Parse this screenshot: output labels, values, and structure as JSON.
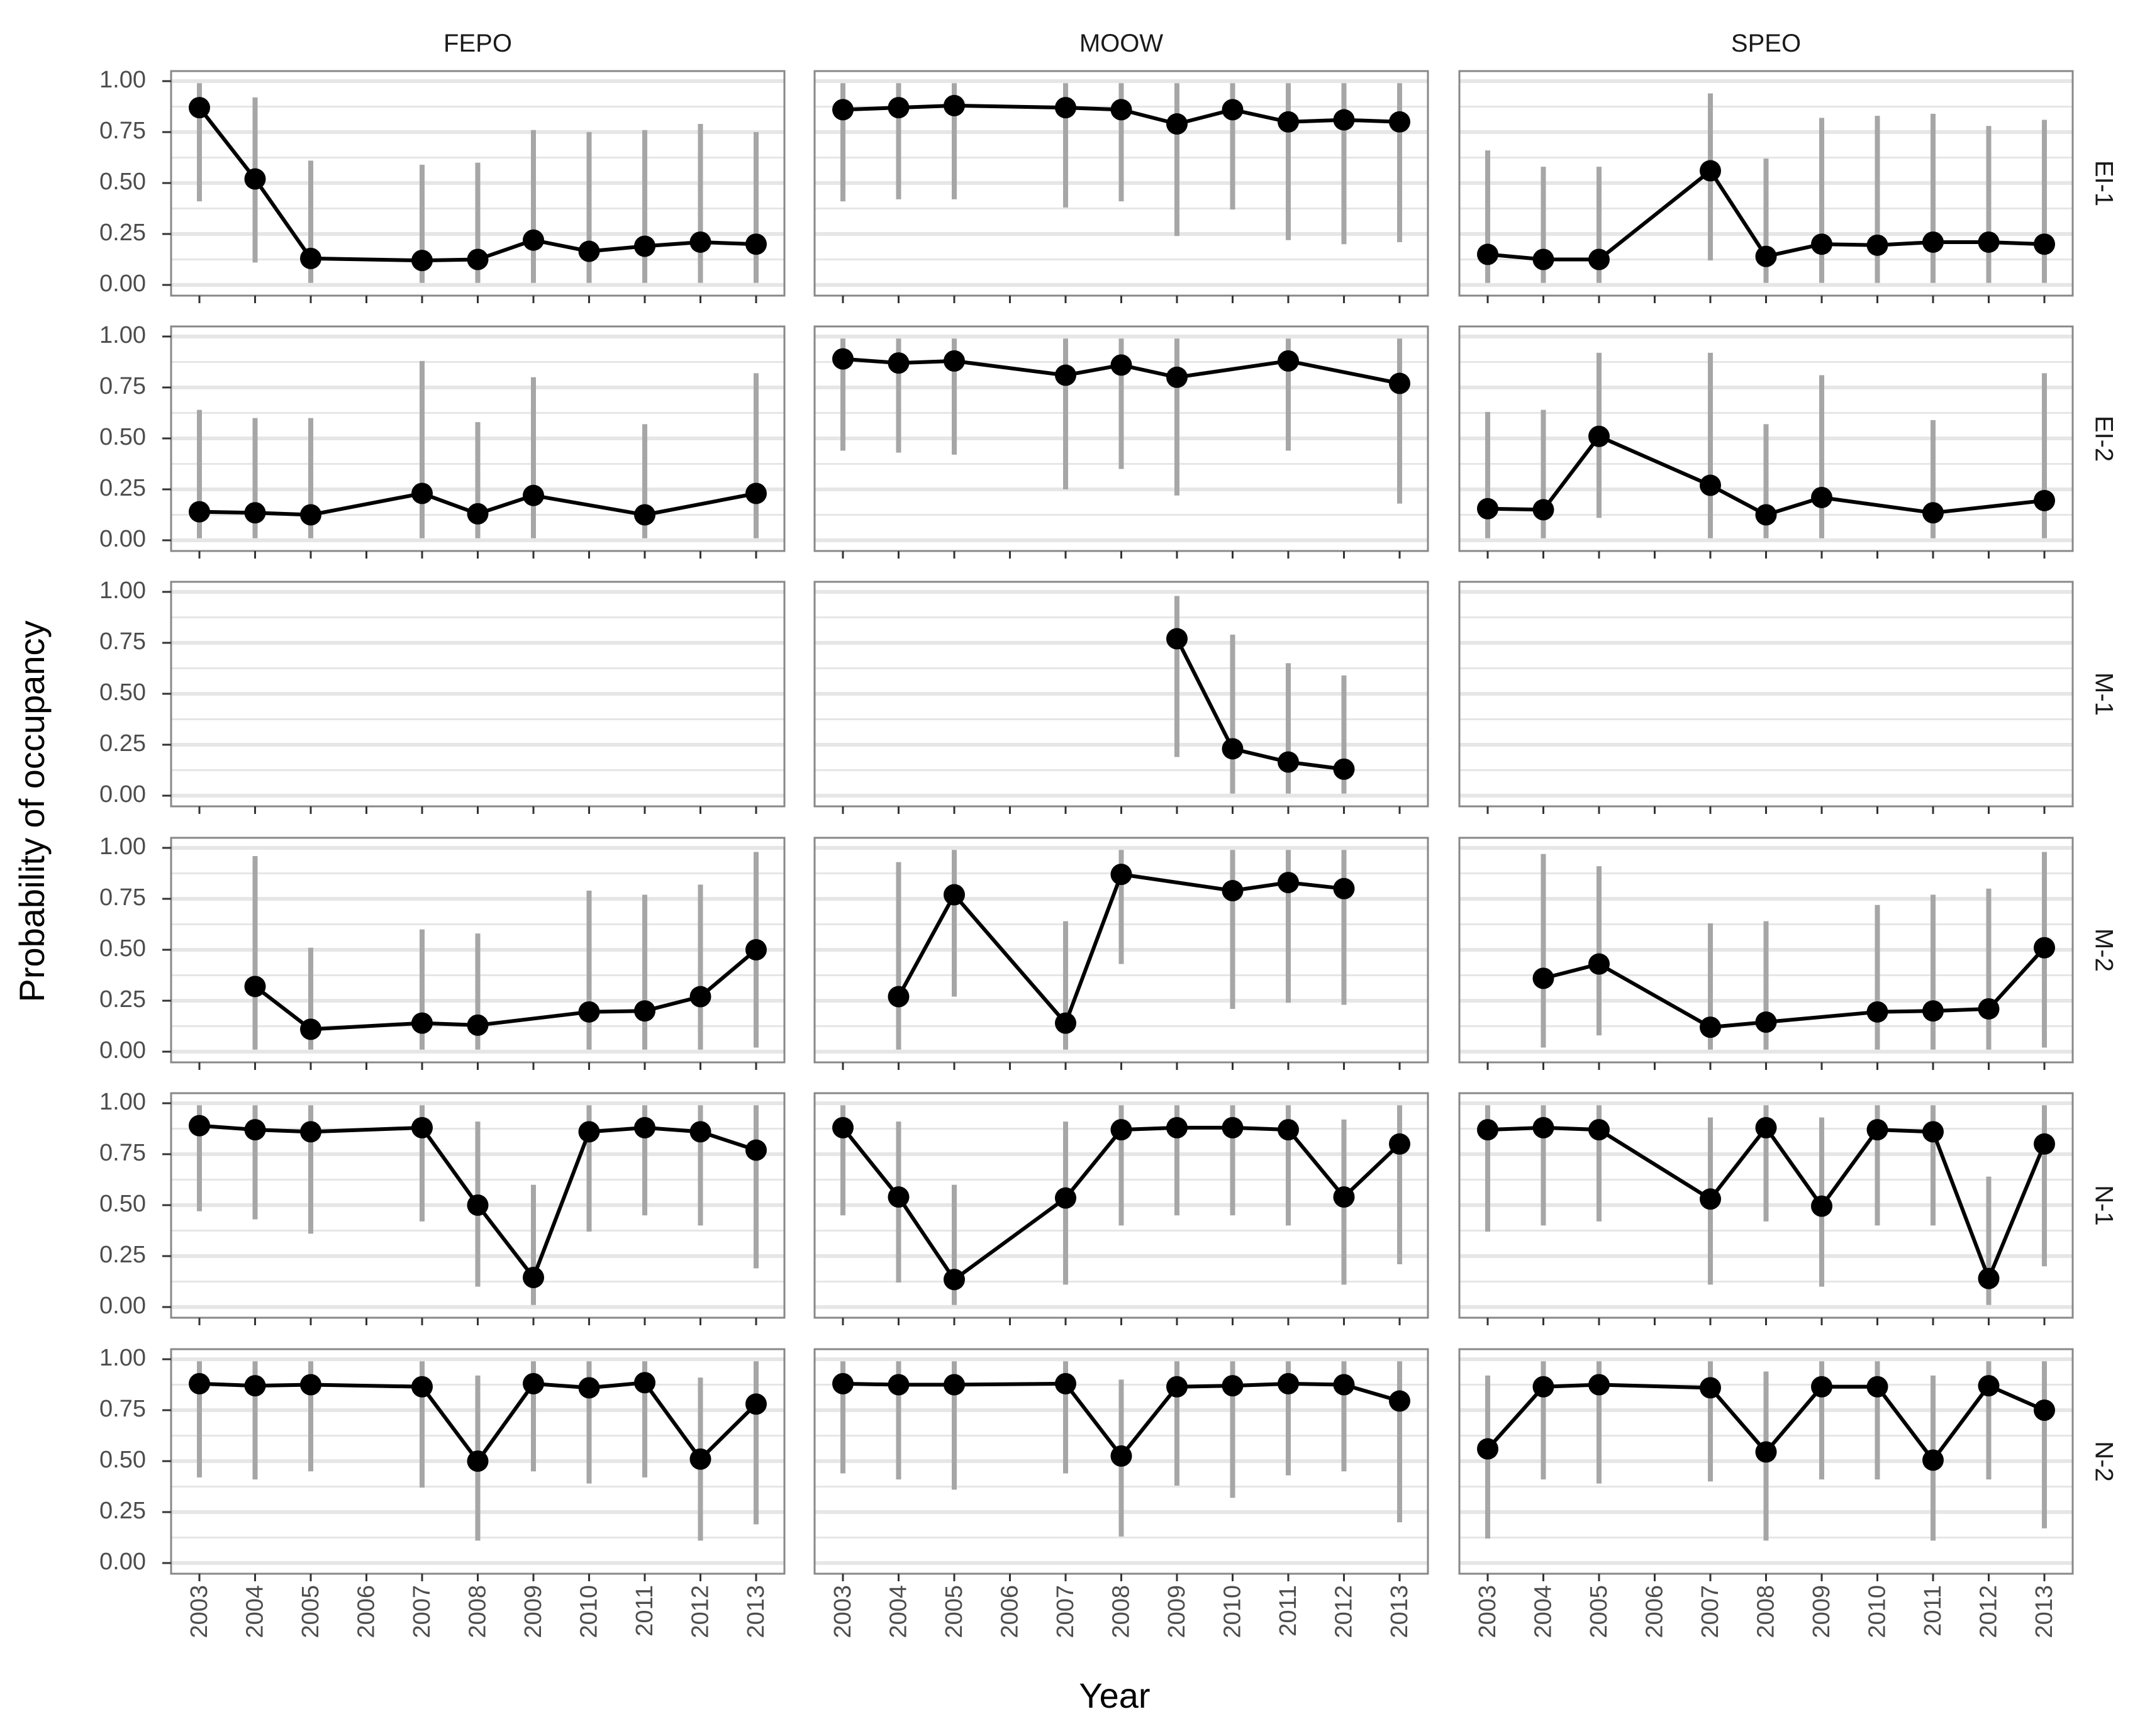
{
  "chart_data": {
    "type": "line",
    "xlabel": "Year",
    "ylabel": "Probability of occupancy",
    "ylim": [
      0,
      1
    ],
    "y_ticks": [
      "0.00",
      "0.25",
      "0.50",
      "0.75",
      "1.00"
    ],
    "x_ticks": [
      "2003",
      "2004",
      "2005",
      "2006",
      "2007",
      "2008",
      "2009",
      "2010",
      "2011",
      "2012",
      "2013"
    ],
    "columns": [
      "FEPO",
      "MOOW",
      "SPEO"
    ],
    "rows": [
      "EI-1",
      "EI-2",
      "M-1",
      "M-2",
      "N-1",
      "N-2"
    ],
    "grid": true,
    "colors": {
      "line": "#000000",
      "point": "#000000",
      "errorbar": "#a6a6a6",
      "grid": "#e6e6e6",
      "panel_border": "#888888"
    },
    "panels": [
      {
        "column": "FEPO",
        "row": "EI-1",
        "points": [
          {
            "x": 2003,
            "y": 0.87,
            "lo": 0.41,
            "hi": 0.99
          },
          {
            "x": 2004,
            "y": 0.52,
            "lo": 0.11,
            "hi": 0.92
          },
          {
            "x": 2005,
            "y": 0.13,
            "lo": 0.01,
            "hi": 0.61
          },
          {
            "x": 2007,
            "y": 0.12,
            "lo": 0.01,
            "hi": 0.59
          },
          {
            "x": 2008,
            "y": 0.125,
            "lo": 0.01,
            "hi": 0.6
          },
          {
            "x": 2009,
            "y": 0.22,
            "lo": 0.01,
            "hi": 0.76
          },
          {
            "x": 2010,
            "y": 0.165,
            "lo": 0.01,
            "hi": 0.75
          },
          {
            "x": 2011,
            "y": 0.19,
            "lo": 0.01,
            "hi": 0.76
          },
          {
            "x": 2012,
            "y": 0.21,
            "lo": 0.01,
            "hi": 0.79
          },
          {
            "x": 2013,
            "y": 0.2,
            "lo": 0.01,
            "hi": 0.75
          }
        ]
      },
      {
        "column": "MOOW",
        "row": "EI-1",
        "points": [
          {
            "x": 2003,
            "y": 0.86,
            "lo": 0.41,
            "hi": 0.99
          },
          {
            "x": 2004,
            "y": 0.87,
            "lo": 0.42,
            "hi": 0.99
          },
          {
            "x": 2005,
            "y": 0.88,
            "lo": 0.42,
            "hi": 0.99
          },
          {
            "x": 2007,
            "y": 0.87,
            "lo": 0.38,
            "hi": 0.99
          },
          {
            "x": 2008,
            "y": 0.86,
            "lo": 0.41,
            "hi": 0.99
          },
          {
            "x": 2009,
            "y": 0.79,
            "lo": 0.24,
            "hi": 0.99
          },
          {
            "x": 2010,
            "y": 0.86,
            "lo": 0.37,
            "hi": 0.99
          },
          {
            "x": 2011,
            "y": 0.8,
            "lo": 0.22,
            "hi": 0.99
          },
          {
            "x": 2012,
            "y": 0.81,
            "lo": 0.2,
            "hi": 0.99
          },
          {
            "x": 2013,
            "y": 0.8,
            "lo": 0.21,
            "hi": 0.99
          }
        ]
      },
      {
        "column": "SPEO",
        "row": "EI-1",
        "points": [
          {
            "x": 2003,
            "y": 0.15,
            "lo": 0.01,
            "hi": 0.66
          },
          {
            "x": 2004,
            "y": 0.125,
            "lo": 0.01,
            "hi": 0.58
          },
          {
            "x": 2005,
            "y": 0.125,
            "lo": 0.01,
            "hi": 0.58
          },
          {
            "x": 2007,
            "y": 0.56,
            "lo": 0.12,
            "hi": 0.94
          },
          {
            "x": 2008,
            "y": 0.14,
            "lo": 0.01,
            "hi": 0.62
          },
          {
            "x": 2009,
            "y": 0.2,
            "lo": 0.01,
            "hi": 0.82
          },
          {
            "x": 2010,
            "y": 0.195,
            "lo": 0.01,
            "hi": 0.83
          },
          {
            "x": 2011,
            "y": 0.21,
            "lo": 0.01,
            "hi": 0.84
          },
          {
            "x": 2012,
            "y": 0.21,
            "lo": 0.01,
            "hi": 0.78
          },
          {
            "x": 2013,
            "y": 0.2,
            "lo": 0.01,
            "hi": 0.81
          }
        ]
      },
      {
        "column": "FEPO",
        "row": "EI-2",
        "points": [
          {
            "x": 2003,
            "y": 0.14,
            "lo": 0.01,
            "hi": 0.64
          },
          {
            "x": 2004,
            "y": 0.135,
            "lo": 0.01,
            "hi": 0.6
          },
          {
            "x": 2005,
            "y": 0.125,
            "lo": 0.01,
            "hi": 0.6
          },
          {
            "x": 2007,
            "y": 0.23,
            "lo": 0.01,
            "hi": 0.88
          },
          {
            "x": 2008,
            "y": 0.13,
            "lo": 0.01,
            "hi": 0.58
          },
          {
            "x": 2009,
            "y": 0.22,
            "lo": 0.01,
            "hi": 0.8
          },
          {
            "x": 2011,
            "y": 0.125,
            "lo": 0.01,
            "hi": 0.57
          },
          {
            "x": 2013,
            "y": 0.23,
            "lo": 0.01,
            "hi": 0.82
          }
        ]
      },
      {
        "column": "MOOW",
        "row": "EI-2",
        "points": [
          {
            "x": 2003,
            "y": 0.89,
            "lo": 0.44,
            "hi": 0.99
          },
          {
            "x": 2004,
            "y": 0.87,
            "lo": 0.43,
            "hi": 0.99
          },
          {
            "x": 2005,
            "y": 0.88,
            "lo": 0.42,
            "hi": 0.99
          },
          {
            "x": 2007,
            "y": 0.81,
            "lo": 0.25,
            "hi": 0.99
          },
          {
            "x": 2008,
            "y": 0.86,
            "lo": 0.35,
            "hi": 0.99
          },
          {
            "x": 2009,
            "y": 0.8,
            "lo": 0.22,
            "hi": 0.99
          },
          {
            "x": 2011,
            "y": 0.88,
            "lo": 0.44,
            "hi": 0.99
          },
          {
            "x": 2013,
            "y": 0.77,
            "lo": 0.18,
            "hi": 0.99
          }
        ]
      },
      {
        "column": "SPEO",
        "row": "EI-2",
        "points": [
          {
            "x": 2003,
            "y": 0.155,
            "lo": 0.01,
            "hi": 0.63
          },
          {
            "x": 2004,
            "y": 0.15,
            "lo": 0.01,
            "hi": 0.64
          },
          {
            "x": 2005,
            "y": 0.51,
            "lo": 0.11,
            "hi": 0.92
          },
          {
            "x": 2007,
            "y": 0.27,
            "lo": 0.01,
            "hi": 0.92
          },
          {
            "x": 2008,
            "y": 0.125,
            "lo": 0.01,
            "hi": 0.57
          },
          {
            "x": 2009,
            "y": 0.21,
            "lo": 0.01,
            "hi": 0.81
          },
          {
            "x": 2011,
            "y": 0.135,
            "lo": 0.01,
            "hi": 0.59
          },
          {
            "x": 2013,
            "y": 0.195,
            "lo": 0.01,
            "hi": 0.82
          }
        ]
      },
      {
        "column": "FEPO",
        "row": "M-1",
        "points": []
      },
      {
        "column": "MOOW",
        "row": "M-1",
        "points": [
          {
            "x": 2009,
            "y": 0.77,
            "lo": 0.19,
            "hi": 0.98
          },
          {
            "x": 2010,
            "y": 0.23,
            "lo": 0.01,
            "hi": 0.79
          },
          {
            "x": 2011,
            "y": 0.165,
            "lo": 0.01,
            "hi": 0.65
          },
          {
            "x": 2012,
            "y": 0.13,
            "lo": 0.01,
            "hi": 0.59
          }
        ]
      },
      {
        "column": "SPEO",
        "row": "M-1",
        "points": []
      },
      {
        "column": "FEPO",
        "row": "M-2",
        "points": [
          {
            "x": 2004,
            "y": 0.32,
            "lo": 0.01,
            "hi": 0.96
          },
          {
            "x": 2005,
            "y": 0.11,
            "lo": 0.01,
            "hi": 0.51
          },
          {
            "x": 2007,
            "y": 0.14,
            "lo": 0.01,
            "hi": 0.6
          },
          {
            "x": 2008,
            "y": 0.13,
            "lo": 0.01,
            "hi": 0.58
          },
          {
            "x": 2010,
            "y": 0.195,
            "lo": 0.01,
            "hi": 0.79
          },
          {
            "x": 2011,
            "y": 0.2,
            "lo": 0.01,
            "hi": 0.77
          },
          {
            "x": 2012,
            "y": 0.27,
            "lo": 0.01,
            "hi": 0.82
          },
          {
            "x": 2013,
            "y": 0.5,
            "lo": 0.02,
            "hi": 0.98
          }
        ]
      },
      {
        "column": "MOOW",
        "row": "M-2",
        "points": [
          {
            "x": 2004,
            "y": 0.27,
            "lo": 0.01,
            "hi": 0.93
          },
          {
            "x": 2005,
            "y": 0.77,
            "lo": 0.27,
            "hi": 0.99
          },
          {
            "x": 2007,
            "y": 0.14,
            "lo": 0.01,
            "hi": 0.64
          },
          {
            "x": 2008,
            "y": 0.87,
            "lo": 0.43,
            "hi": 0.99
          },
          {
            "x": 2010,
            "y": 0.79,
            "lo": 0.21,
            "hi": 0.99
          },
          {
            "x": 2011,
            "y": 0.83,
            "lo": 0.24,
            "hi": 0.99
          },
          {
            "x": 2012,
            "y": 0.8,
            "lo": 0.23,
            "hi": 0.99
          }
        ]
      },
      {
        "column": "SPEO",
        "row": "M-2",
        "points": [
          {
            "x": 2004,
            "y": 0.36,
            "lo": 0.02,
            "hi": 0.97
          },
          {
            "x": 2005,
            "y": 0.43,
            "lo": 0.08,
            "hi": 0.91
          },
          {
            "x": 2007,
            "y": 0.12,
            "lo": 0.01,
            "hi": 0.63
          },
          {
            "x": 2008,
            "y": 0.145,
            "lo": 0.01,
            "hi": 0.64
          },
          {
            "x": 2010,
            "y": 0.195,
            "lo": 0.01,
            "hi": 0.72
          },
          {
            "x": 2011,
            "y": 0.2,
            "lo": 0.01,
            "hi": 0.77
          },
          {
            "x": 2012,
            "y": 0.21,
            "lo": 0.01,
            "hi": 0.8
          },
          {
            "x": 2013,
            "y": 0.51,
            "lo": 0.02,
            "hi": 0.98
          }
        ]
      },
      {
        "column": "FEPO",
        "row": "N-1",
        "points": [
          {
            "x": 2003,
            "y": 0.89,
            "lo": 0.47,
            "hi": 0.99
          },
          {
            "x": 2004,
            "y": 0.87,
            "lo": 0.43,
            "hi": 0.99
          },
          {
            "x": 2005,
            "y": 0.86,
            "lo": 0.36,
            "hi": 0.99
          },
          {
            "x": 2007,
            "y": 0.88,
            "lo": 0.42,
            "hi": 0.99
          },
          {
            "x": 2008,
            "y": 0.5,
            "lo": 0.1,
            "hi": 0.91
          },
          {
            "x": 2009,
            "y": 0.145,
            "lo": 0.01,
            "hi": 0.6
          },
          {
            "x": 2010,
            "y": 0.86,
            "lo": 0.37,
            "hi": 0.99
          },
          {
            "x": 2011,
            "y": 0.88,
            "lo": 0.45,
            "hi": 0.99
          },
          {
            "x": 2012,
            "y": 0.86,
            "lo": 0.4,
            "hi": 0.99
          },
          {
            "x": 2013,
            "y": 0.77,
            "lo": 0.19,
            "hi": 0.99
          }
        ]
      },
      {
        "column": "MOOW",
        "row": "N-1",
        "points": [
          {
            "x": 2003,
            "y": 0.88,
            "lo": 0.45,
            "hi": 0.99
          },
          {
            "x": 2004,
            "y": 0.54,
            "lo": 0.12,
            "hi": 0.91
          },
          {
            "x": 2005,
            "y": 0.135,
            "lo": 0.01,
            "hi": 0.6
          },
          {
            "x": 2007,
            "y": 0.535,
            "lo": 0.11,
            "hi": 0.91
          },
          {
            "x": 2008,
            "y": 0.87,
            "lo": 0.4,
            "hi": 0.99
          },
          {
            "x": 2009,
            "y": 0.88,
            "lo": 0.45,
            "hi": 0.99
          },
          {
            "x": 2010,
            "y": 0.88,
            "lo": 0.45,
            "hi": 0.99
          },
          {
            "x": 2011,
            "y": 0.87,
            "lo": 0.4,
            "hi": 0.99
          },
          {
            "x": 2012,
            "y": 0.54,
            "lo": 0.11,
            "hi": 0.92
          },
          {
            "x": 2013,
            "y": 0.8,
            "lo": 0.21,
            "hi": 0.99
          }
        ]
      },
      {
        "column": "SPEO",
        "row": "N-1",
        "points": [
          {
            "x": 2003,
            "y": 0.87,
            "lo": 0.37,
            "hi": 0.99
          },
          {
            "x": 2004,
            "y": 0.88,
            "lo": 0.4,
            "hi": 0.99
          },
          {
            "x": 2005,
            "y": 0.87,
            "lo": 0.42,
            "hi": 0.99
          },
          {
            "x": 2007,
            "y": 0.53,
            "lo": 0.11,
            "hi": 0.93
          },
          {
            "x": 2008,
            "y": 0.88,
            "lo": 0.42,
            "hi": 0.99
          },
          {
            "x": 2009,
            "y": 0.495,
            "lo": 0.1,
            "hi": 0.93
          },
          {
            "x": 2010,
            "y": 0.87,
            "lo": 0.4,
            "hi": 0.99
          },
          {
            "x": 2011,
            "y": 0.86,
            "lo": 0.4,
            "hi": 0.99
          },
          {
            "x": 2012,
            "y": 0.14,
            "lo": 0.01,
            "hi": 0.64
          },
          {
            "x": 2013,
            "y": 0.8,
            "lo": 0.2,
            "hi": 0.99
          }
        ]
      },
      {
        "column": "FEPO",
        "row": "N-2",
        "points": [
          {
            "x": 2003,
            "y": 0.88,
            "lo": 0.42,
            "hi": 0.99
          },
          {
            "x": 2004,
            "y": 0.87,
            "lo": 0.41,
            "hi": 0.99
          },
          {
            "x": 2005,
            "y": 0.875,
            "lo": 0.45,
            "hi": 0.99
          },
          {
            "x": 2007,
            "y": 0.865,
            "lo": 0.37,
            "hi": 0.99
          },
          {
            "x": 2008,
            "y": 0.5,
            "lo": 0.11,
            "hi": 0.92
          },
          {
            "x": 2009,
            "y": 0.88,
            "lo": 0.45,
            "hi": 0.99
          },
          {
            "x": 2010,
            "y": 0.86,
            "lo": 0.39,
            "hi": 0.99
          },
          {
            "x": 2011,
            "y": 0.885,
            "lo": 0.42,
            "hi": 0.99
          },
          {
            "x": 2012,
            "y": 0.51,
            "lo": 0.11,
            "hi": 0.91
          },
          {
            "x": 2013,
            "y": 0.78,
            "lo": 0.19,
            "hi": 0.99
          }
        ]
      },
      {
        "column": "MOOW",
        "row": "N-2",
        "points": [
          {
            "x": 2003,
            "y": 0.88,
            "lo": 0.44,
            "hi": 0.99
          },
          {
            "x": 2004,
            "y": 0.875,
            "lo": 0.41,
            "hi": 0.99
          },
          {
            "x": 2005,
            "y": 0.875,
            "lo": 0.36,
            "hi": 0.99
          },
          {
            "x": 2007,
            "y": 0.88,
            "lo": 0.44,
            "hi": 0.99
          },
          {
            "x": 2008,
            "y": 0.525,
            "lo": 0.13,
            "hi": 0.9
          },
          {
            "x": 2009,
            "y": 0.865,
            "lo": 0.38,
            "hi": 0.99
          },
          {
            "x": 2010,
            "y": 0.87,
            "lo": 0.32,
            "hi": 0.99
          },
          {
            "x": 2011,
            "y": 0.88,
            "lo": 0.43,
            "hi": 0.99
          },
          {
            "x": 2012,
            "y": 0.875,
            "lo": 0.45,
            "hi": 0.99
          },
          {
            "x": 2013,
            "y": 0.795,
            "lo": 0.2,
            "hi": 0.99
          }
        ]
      },
      {
        "column": "SPEO",
        "row": "N-2",
        "points": [
          {
            "x": 2003,
            "y": 0.56,
            "lo": 0.12,
            "hi": 0.92
          },
          {
            "x": 2004,
            "y": 0.865,
            "lo": 0.41,
            "hi": 0.99
          },
          {
            "x": 2005,
            "y": 0.875,
            "lo": 0.39,
            "hi": 0.99
          },
          {
            "x": 2007,
            "y": 0.86,
            "lo": 0.4,
            "hi": 0.99
          },
          {
            "x": 2008,
            "y": 0.545,
            "lo": 0.11,
            "hi": 0.94
          },
          {
            "x": 2009,
            "y": 0.865,
            "lo": 0.41,
            "hi": 0.99
          },
          {
            "x": 2010,
            "y": 0.865,
            "lo": 0.41,
            "hi": 0.99
          },
          {
            "x": 2011,
            "y": 0.505,
            "lo": 0.11,
            "hi": 0.92
          },
          {
            "x": 2012,
            "y": 0.87,
            "lo": 0.41,
            "hi": 0.99
          },
          {
            "x": 2013,
            "y": 0.75,
            "lo": 0.17,
            "hi": 0.99
          }
        ]
      }
    ]
  }
}
